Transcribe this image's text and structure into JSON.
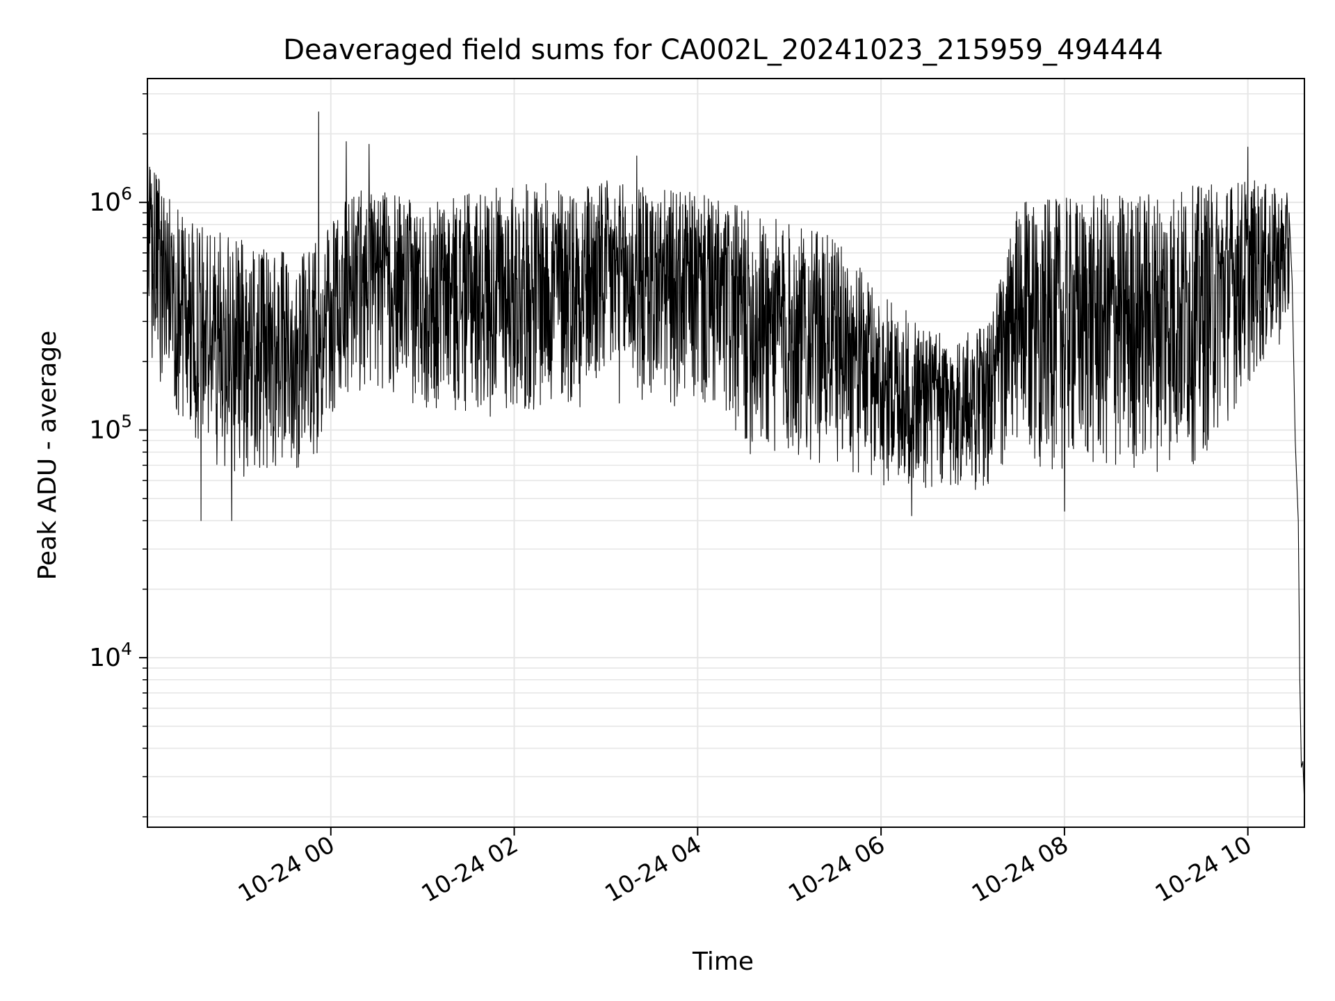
{
  "chart_data": {
    "type": "line",
    "title": "Deaveraged field sums for CA002L_20241023_215959_494444",
    "xlabel": "Time",
    "ylabel": "Peak ADU - average",
    "yscale": "log",
    "grid": true,
    "line_color": "#000000",
    "grid_color": "#e6e6e6",
    "xlim": [
      "2024-10-23 22:00",
      "2024-10-24 10:37"
    ],
    "ylim": [
      1800,
      3500000
    ],
    "x_ticks": [
      {
        "t": "2024-10-24 00:00",
        "label": "10-24 00"
      },
      {
        "t": "2024-10-24 02:00",
        "label": "10-24 02"
      },
      {
        "t": "2024-10-24 04:00",
        "label": "10-24 04"
      },
      {
        "t": "2024-10-24 06:00",
        "label": "10-24 06"
      },
      {
        "t": "2024-10-24 08:00",
        "label": "10-24 08"
      },
      {
        "t": "2024-10-24 10:00",
        "label": "10-24 10"
      }
    ],
    "y_ticks": [
      {
        "value": 10000,
        "base": "10",
        "exp": "4"
      },
      {
        "value": 100000,
        "base": "10",
        "exp": "5"
      },
      {
        "value": 1000000,
        "base": "10",
        "exp": "6"
      }
    ],
    "envelope": [
      {
        "t": "2024-10-23 22:00",
        "low": 200000,
        "high": 1500000
      },
      {
        "t": "2024-10-23 22:30",
        "low": 80000,
        "high": 800000
      },
      {
        "t": "2024-10-23 23:00",
        "low": 60000,
        "high": 700000
      },
      {
        "t": "2024-10-23 23:30",
        "low": 60000,
        "high": 600000
      },
      {
        "t": "2024-10-23 23:55",
        "low": 80000,
        "high": 700000
      },
      {
        "t": "2024-10-24 00:15",
        "low": 150000,
        "high": 1200000
      },
      {
        "t": "2024-10-24 01:00",
        "low": 120000,
        "high": 1000000
      },
      {
        "t": "2024-10-24 02:00",
        "low": 110000,
        "high": 1200000
      },
      {
        "t": "2024-10-24 03:00",
        "low": 130000,
        "high": 1250000
      },
      {
        "t": "2024-10-24 04:00",
        "low": 120000,
        "high": 1100000
      },
      {
        "t": "2024-10-24 04:40",
        "low": 70000,
        "high": 900000
      },
      {
        "t": "2024-10-24 05:30",
        "low": 70000,
        "high": 700000
      },
      {
        "t": "2024-10-24 06:00",
        "low": 55000,
        "high": 400000
      },
      {
        "t": "2024-10-24 06:45",
        "low": 50000,
        "high": 250000
      },
      {
        "t": "2024-10-24 07:10",
        "low": 55000,
        "high": 300000
      },
      {
        "t": "2024-10-24 07:30",
        "low": 70000,
        "high": 1000000
      },
      {
        "t": "2024-10-24 08:30",
        "low": 60000,
        "high": 1100000
      },
      {
        "t": "2024-10-24 09:30",
        "low": 70000,
        "high": 1200000
      },
      {
        "t": "2024-10-24 10:00",
        "low": 150000,
        "high": 1300000
      },
      {
        "t": "2024-10-24 10:25",
        "low": 250000,
        "high": 1100000
      }
    ],
    "spikes": [
      {
        "t": "2024-10-23 23:52",
        "value": 2500000
      },
      {
        "t": "2024-10-24 00:10",
        "value": 1850000
      },
      {
        "t": "2024-10-24 00:25",
        "value": 1800000
      },
      {
        "t": "2024-10-24 03:20",
        "value": 1600000
      },
      {
        "t": "2024-10-24 10:00",
        "value": 1750000
      },
      {
        "t": "2024-10-23 22:35",
        "value": 40000
      },
      {
        "t": "2024-10-23 22:55",
        "value": 40000
      },
      {
        "t": "2024-10-24 06:20",
        "value": 42000
      },
      {
        "t": "2024-10-24 08:00",
        "value": 44000
      }
    ],
    "tail": [
      {
        "t": "2024-10-24 10:27",
        "value": 900000
      },
      {
        "t": "2024-10-24 10:29",
        "value": 450000
      },
      {
        "t": "2024-10-24 10:31",
        "value": 90000
      },
      {
        "t": "2024-10-24 10:33",
        "value": 40000
      },
      {
        "t": "2024-10-24 10:34",
        "value": 8000
      },
      {
        "t": "2024-10-24 10:35",
        "value": 3300
      },
      {
        "t": "2024-10-24 10:36",
        "value": 3500
      },
      {
        "t": "2024-10-24 10:37",
        "value": 2300
      }
    ]
  }
}
